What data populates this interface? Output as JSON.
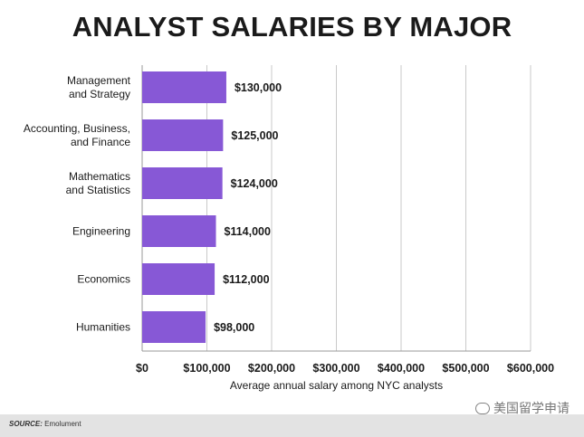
{
  "title": "ANALYST SALARIES BY MAJOR",
  "source_label": "SOURCE:",
  "source_text": "Emolument",
  "watermark_text": "美国留学申请",
  "colors": {
    "bar": "#8758d6",
    "grid": "#c9c9c9",
    "text": "#1a1a1a"
  },
  "chart_data": {
    "type": "bar",
    "orientation": "horizontal",
    "categories": [
      [
        "Management",
        "and Strategy"
      ],
      [
        "Accounting, Business,",
        "and Finance"
      ],
      [
        "Mathematics",
        "and Statistics"
      ],
      [
        "Engineering"
      ],
      [
        "Economics"
      ],
      [
        "Humanities"
      ]
    ],
    "values": [
      130000,
      125000,
      124000,
      114000,
      112000,
      98000
    ],
    "value_labels": [
      "$130,000",
      "$125,000",
      "$124,000",
      "$114,000",
      "$112,000",
      "$98,000"
    ],
    "xlim": [
      0,
      600000
    ],
    "xticks": [
      0,
      100000,
      200000,
      300000,
      400000,
      500000,
      600000
    ],
    "xtick_labels": [
      "$0",
      "$100,000",
      "$200,000",
      "$300,000",
      "$400,000",
      "$500,000",
      "$600,000"
    ],
    "xlabel": "Average annual salary among NYC analysts",
    "grid": true
  }
}
